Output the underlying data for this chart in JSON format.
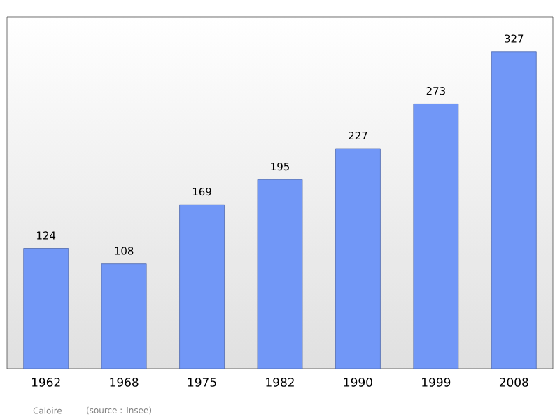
{
  "chart_data": {
    "type": "bar",
    "categories": [
      "1962",
      "1968",
      "1975",
      "1982",
      "1990",
      "1999",
      "2008"
    ],
    "values": [
      124,
      108,
      169,
      195,
      227,
      273,
      327
    ],
    "color": "#7197f7",
    "data_labels": true,
    "annotations": [
      "Caloire",
      "(source : Insee)"
    ]
  }
}
